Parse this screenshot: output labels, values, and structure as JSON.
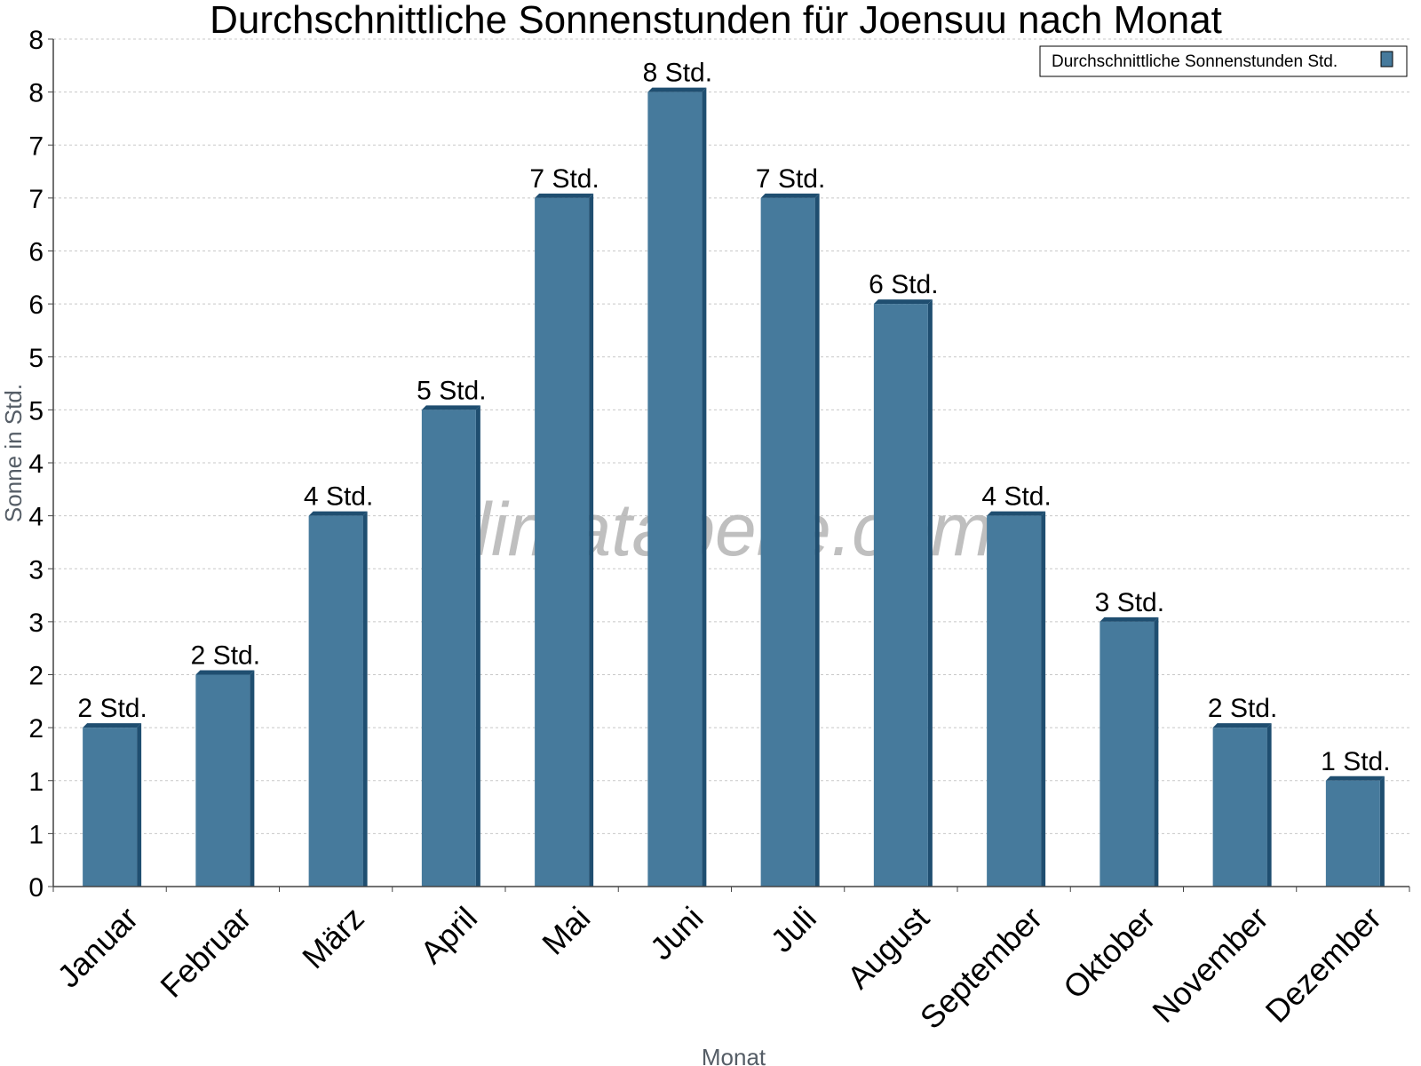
{
  "chart_data": {
    "type": "bar",
    "title": "Durchschnittliche Sonnenstunden für Joensuu nach Monat",
    "xlabel": "Monat",
    "ylabel": "Sonne in Std.",
    "categories": [
      "Januar",
      "Februar",
      "März",
      "April",
      "Mai",
      "Juni",
      "Juli",
      "August",
      "September",
      "Oktober",
      "November",
      "Dezember"
    ],
    "series": [
      {
        "name": "Durchschnittliche Sonnenstunden Std.",
        "values": [
          1.5,
          2,
          3.5,
          4.5,
          6.5,
          7.5,
          6.5,
          5.5,
          3.5,
          2.5,
          1.5,
          1
        ],
        "labels": [
          "2 Std.",
          "2 Std.",
          "4 Std.",
          "5 Std.",
          "7 Std.",
          "8 Std.",
          "7 Std.",
          "6 Std.",
          "4 Std.",
          "3 Std.",
          "2 Std.",
          "1 Std."
        ]
      }
    ],
    "ylim": [
      0,
      8
    ],
    "yticks": [
      0,
      0.5,
      1,
      1.5,
      2,
      2.5,
      3,
      3.5,
      4,
      4.5,
      5,
      5.5,
      6,
      6.5,
      7,
      7.5,
      8
    ],
    "ytick_labels": [
      "0",
      "1",
      "1",
      "2",
      "2",
      "3",
      "3",
      "4",
      "4",
      "5",
      "5",
      "6",
      "6",
      "7",
      "7",
      "8",
      "8"
    ],
    "grid": true,
    "legend_position": "top-right",
    "colors": {
      "bar": "#467a9c",
      "bar_side": "#1f4e70",
      "grid": "#c8c8c8",
      "axis": "#444444"
    },
    "watermark": "klimatabelle.com"
  }
}
